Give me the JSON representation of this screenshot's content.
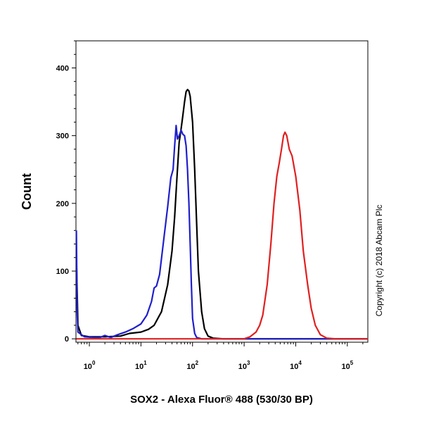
{
  "chart_data": {
    "type": "line",
    "xlabel": "SOX2 - Alexa Fluor® 488 (530/30 BP)",
    "ylabel": "Count",
    "x_scale": "log",
    "xlim": [
      0.55,
      250000
    ],
    "ylim": [
      -5,
      440
    ],
    "x_ticks": [
      {
        "base": "10",
        "exp": "0",
        "value": 1
      },
      {
        "base": "10",
        "exp": "1",
        "value": 10
      },
      {
        "base": "10",
        "exp": "2",
        "value": 100
      },
      {
        "base": "10",
        "exp": "3",
        "value": 1000
      },
      {
        "base": "10",
        "exp": "4",
        "value": 10000
      },
      {
        "base": "10",
        "exp": "5",
        "value": 100000
      }
    ],
    "y_ticks": [
      "0",
      "100",
      "200",
      "300",
      "400"
    ],
    "copyright": "Copyright (c) 2018 Abcam Plc",
    "series": [
      {
        "color": "#000000",
        "points": [
          [
            0.56,
            120
          ],
          [
            0.6,
            20
          ],
          [
            0.7,
            5
          ],
          [
            1,
            3
          ],
          [
            2,
            3
          ],
          [
            4,
            4
          ],
          [
            6,
            8
          ],
          [
            10,
            10
          ],
          [
            14,
            14
          ],
          [
            18,
            20
          ],
          [
            25,
            40
          ],
          [
            33,
            80
          ],
          [
            40,
            130
          ],
          [
            45,
            180
          ],
          [
            50,
            240
          ],
          [
            55,
            290
          ],
          [
            60,
            310
          ],
          [
            65,
            330
          ],
          [
            70,
            350
          ],
          [
            75,
            365
          ],
          [
            80,
            368
          ],
          [
            85,
            366
          ],
          [
            90,
            358
          ],
          [
            100,
            320
          ],
          [
            110,
            250
          ],
          [
            120,
            170
          ],
          [
            130,
            100
          ],
          [
            150,
            40
          ],
          [
            170,
            15
          ],
          [
            200,
            4
          ],
          [
            250,
            1
          ],
          [
            400,
            0
          ],
          [
            250000,
            0
          ]
        ]
      },
      {
        "color": "#1f1fcc",
        "points": [
          [
            0.56,
            160
          ],
          [
            0.58,
            40
          ],
          [
            0.6,
            10
          ],
          [
            0.8,
            3
          ],
          [
            1.2,
            2
          ],
          [
            1.6,
            2
          ],
          [
            2,
            5
          ],
          [
            2.6,
            2
          ],
          [
            3.5,
            6
          ],
          [
            5,
            10
          ],
          [
            7,
            15
          ],
          [
            10,
            22
          ],
          [
            13,
            35
          ],
          [
            16,
            55
          ],
          [
            18,
            75
          ],
          [
            20,
            78
          ],
          [
            23,
            95
          ],
          [
            28,
            150
          ],
          [
            33,
            195
          ],
          [
            38,
            238
          ],
          [
            42,
            250
          ],
          [
            45,
            285
          ],
          [
            48,
            315
          ],
          [
            51,
            295
          ],
          [
            55,
            300
          ],
          [
            60,
            308
          ],
          [
            65,
            302
          ],
          [
            70,
            300
          ],
          [
            75,
            285
          ],
          [
            80,
            250
          ],
          [
            85,
            200
          ],
          [
            90,
            140
          ],
          [
            95,
            80
          ],
          [
            100,
            30
          ],
          [
            110,
            8
          ],
          [
            120,
            2
          ],
          [
            150,
            0
          ],
          [
            250000,
            0
          ]
        ]
      },
      {
        "color": "#e02020",
        "points": [
          [
            0.56,
            0
          ],
          [
            1000,
            0
          ],
          [
            1300,
            3
          ],
          [
            1700,
            10
          ],
          [
            2000,
            20
          ],
          [
            2300,
            35
          ],
          [
            2800,
            80
          ],
          [
            3300,
            140
          ],
          [
            3800,
            200
          ],
          [
            4300,
            240
          ],
          [
            4800,
            260
          ],
          [
            5300,
            280
          ],
          [
            5800,
            300
          ],
          [
            6200,
            305
          ],
          [
            6700,
            300
          ],
          [
            7500,
            280
          ],
          [
            8500,
            270
          ],
          [
            10000,
            240
          ],
          [
            12000,
            190
          ],
          [
            14000,
            130
          ],
          [
            17000,
            80
          ],
          [
            20000,
            45
          ],
          [
            24000,
            20
          ],
          [
            30000,
            6
          ],
          [
            40000,
            1
          ],
          [
            60000,
            0
          ],
          [
            250000,
            0
          ]
        ]
      }
    ]
  }
}
